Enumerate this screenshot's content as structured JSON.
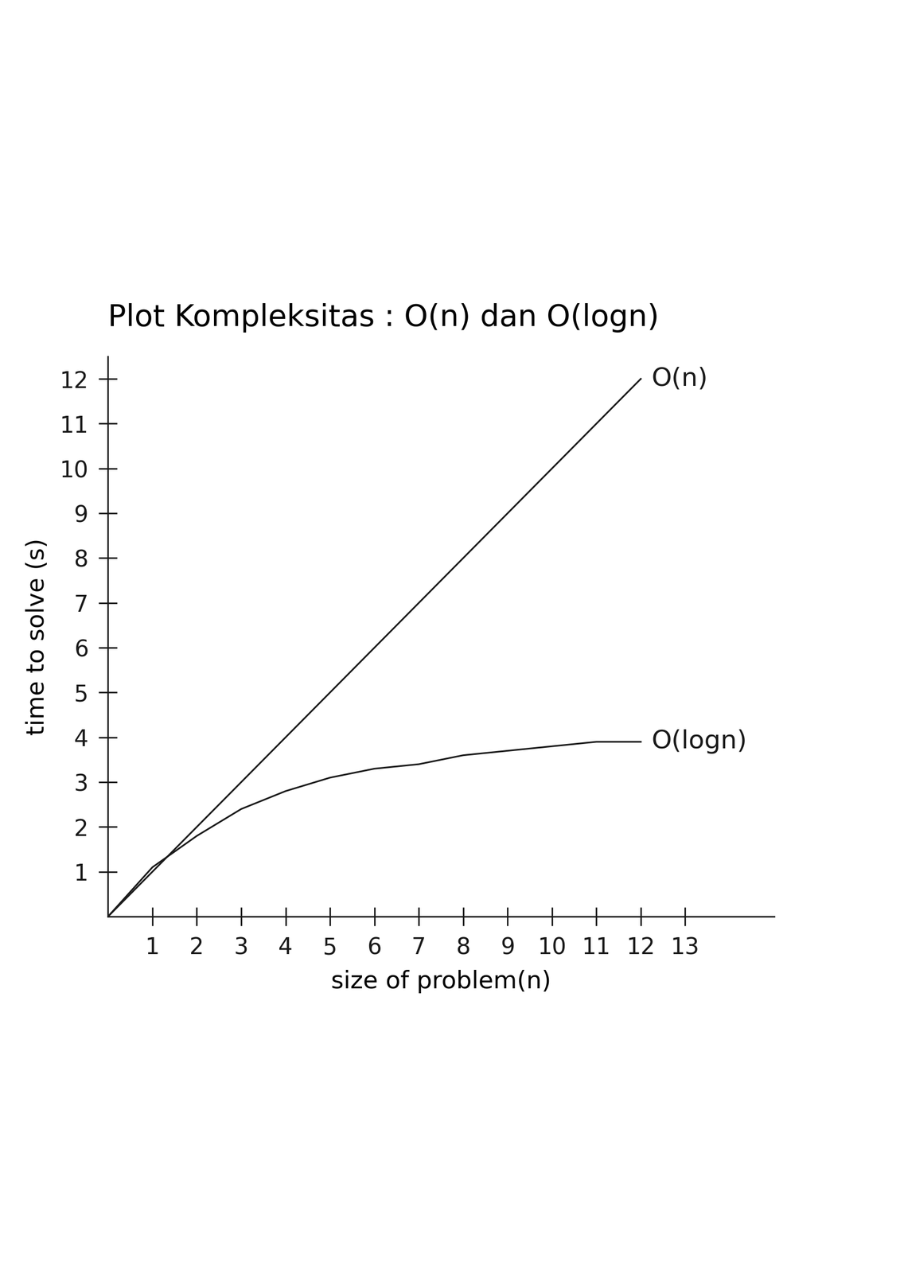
{
  "chart_data": {
    "type": "line",
    "title": "Plot Kompleksitas : O(n) dan O(logn)",
    "x_label": "size of problem(n)",
    "y_label": "time to solve (s)",
    "x": [
      0,
      1,
      2,
      3,
      4,
      5,
      6,
      7,
      8,
      9,
      10,
      11,
      12
    ],
    "series": [
      {
        "name": "O(n)",
        "color": "#1a1a1a",
        "line_style": "solid",
        "values": [
          0,
          1,
          2,
          3,
          4,
          5,
          6,
          7,
          8,
          9,
          10,
          11,
          12
        ]
      },
      {
        "name": "O(logn)",
        "color": "#1a1a1a",
        "line_style": "solid",
        "values": [
          0,
          1.1,
          1.8,
          2.4,
          2.8,
          3.1,
          3.3,
          3.4,
          3.6,
          3.7,
          3.8,
          3.9,
          3.9
        ]
      }
    ],
    "xlim": [
      0,
      15
    ],
    "ylim": [
      0,
      12.5
    ],
    "xticks": [
      1,
      2,
      3,
      4,
      5,
      6,
      7,
      8,
      9,
      10,
      11,
      12,
      13
    ],
    "yticks": [
      1,
      2,
      3,
      4,
      5,
      6,
      7,
      8,
      9,
      10,
      11,
      12
    ],
    "grid": false
  }
}
